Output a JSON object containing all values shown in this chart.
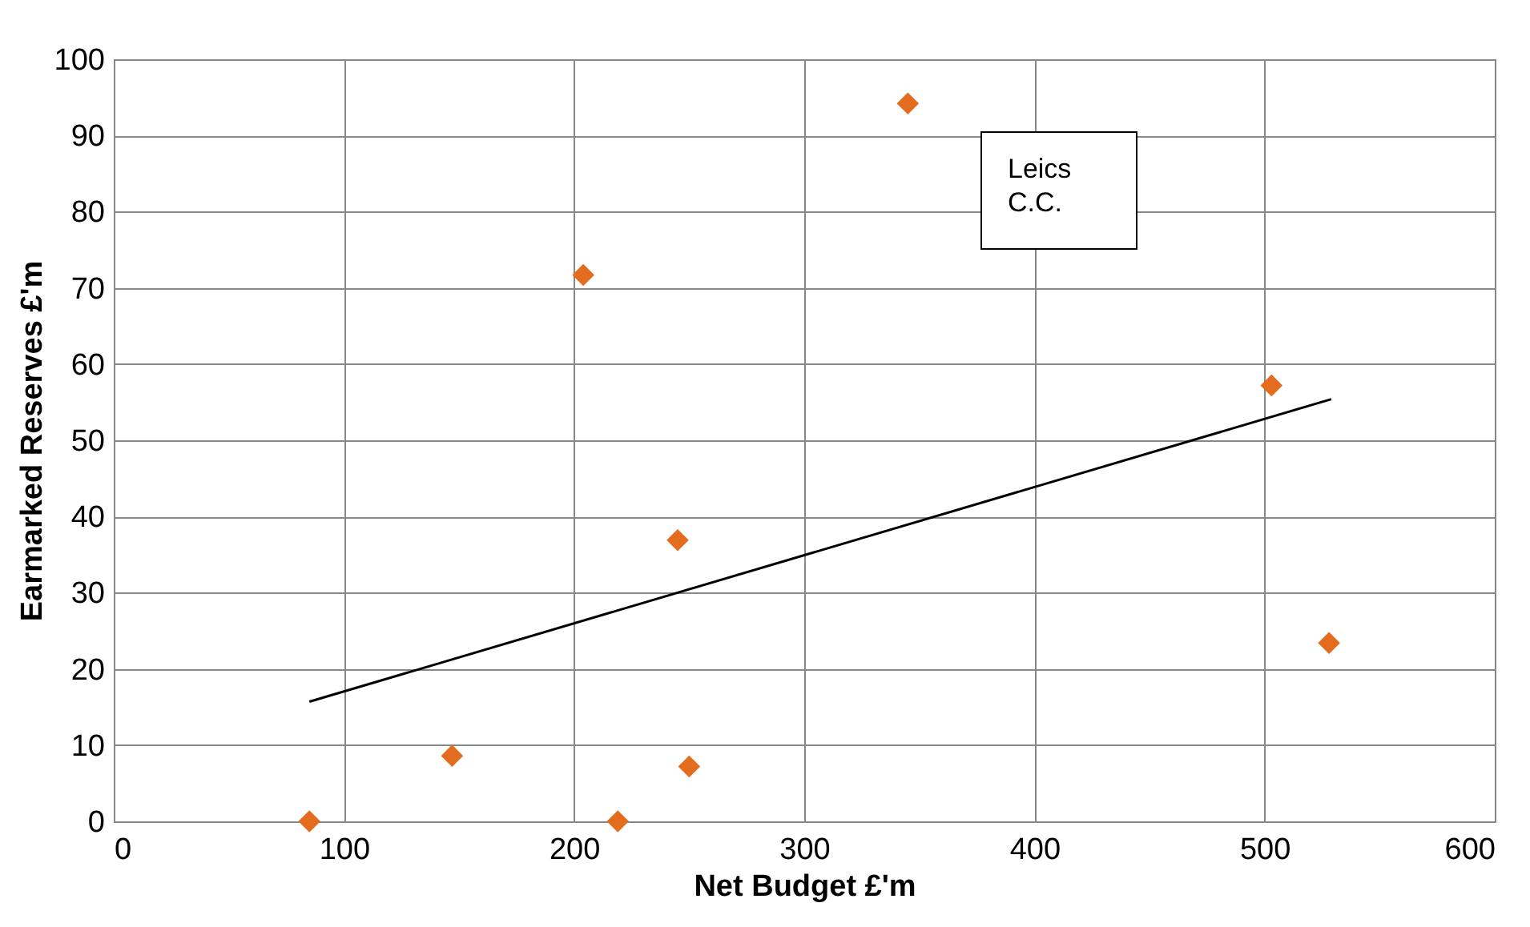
{
  "chart_data": {
    "type": "scatter",
    "xlabel": "Net Budget £'m",
    "ylabel": "Earmarked Reserves £'m",
    "xlim": [
      0,
      600
    ],
    "xticks": [
      0,
      100,
      200,
      300,
      400,
      500,
      600
    ],
    "ylim": [
      0,
      100
    ],
    "yticks": [
      0,
      10,
      20,
      30,
      40,
      50,
      60,
      70,
      80,
      90,
      100
    ],
    "grid": true,
    "marker": "diamond",
    "annotations": [
      "Leics C.C."
    ],
    "series": [
      {
        "color": "#e36c1e",
        "x": [
          85,
          147,
          204,
          219,
          245,
          250,
          345,
          503,
          528
        ],
        "values": [
          0,
          8.6,
          71.7,
          0,
          36.9,
          7.2,
          94.2,
          57.2,
          23.4
        ]
      },
      {
        "type": "line",
        "color": "#000000",
        "marker": "none",
        "x": [
          85,
          529
        ],
        "values": [
          15.7,
          55.4
        ]
      }
    ]
  }
}
